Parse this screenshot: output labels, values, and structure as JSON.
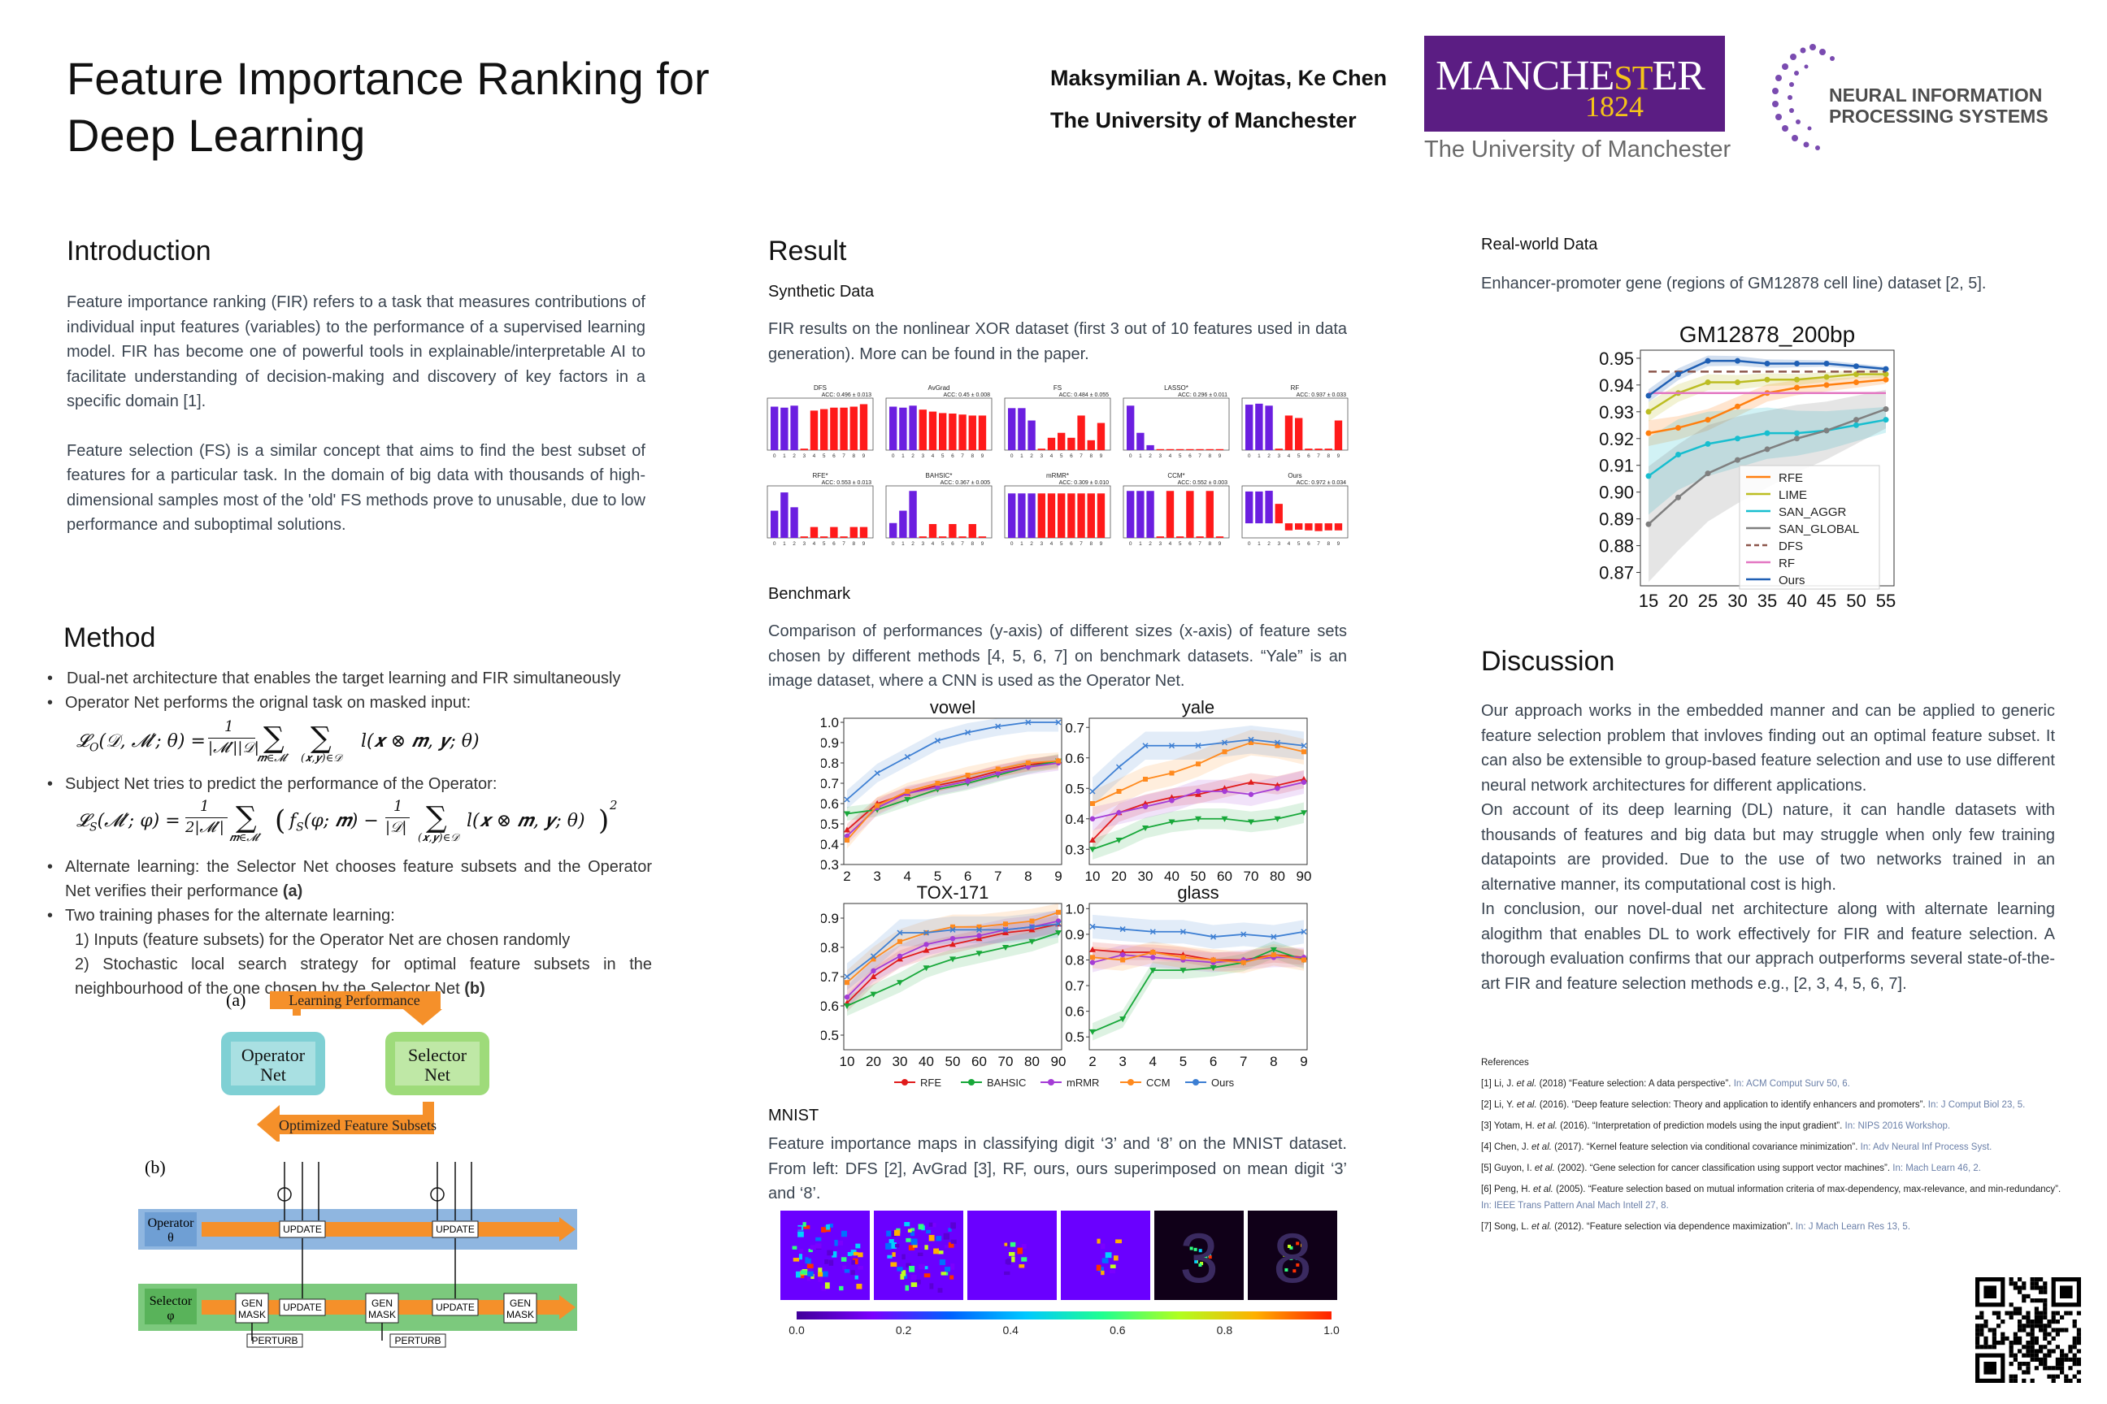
{
  "title_lines": [
    "Feature Importance Ranking for",
    "Deep Learning"
  ],
  "authors": "Maksymilian A. Wojtas, Ke Chen",
  "affiliation": "The University of Manchester",
  "manchester_logo": {
    "word_a": "MANCHE",
    "word_b": "ST",
    "word_c": "ER",
    "year": "1824",
    "sub": "The University of Manchester",
    "color": "#5b1d83"
  },
  "neurips_logo": {
    "line1": "NEURAL INFORMATION",
    "line2": "PROCESSING SYSTEMS",
    "color": "#6b3fa0"
  },
  "colors": {
    "accent": "#3a4450",
    "link": "#6a7fa8",
    "red": "#ff1a1a",
    "blue": "#6b1fe0"
  },
  "intro": {
    "heading": "Introduction",
    "p1": "Feature importance ranking (FIR) refers to a task that measures contributions of individual input features (variables) to the performance of a supervised learning model. FIR has become one of powerful tools in explainable/interpretable AI to facilitate understanding of decision-making and discovery of key factors in a specific domain [1].",
    "p2": "Feature selection (FS) is a similar concept that aims to find the best subset of features for a particular task. In the domain of big data with thousands of high-dimensional samples most of the 'old' FS methods prove to unusable, due to low performance and suboptimal solutions."
  },
  "method": {
    "heading": "Method",
    "b1": "Dual-net architecture that enables the target learning and FIR simultaneously",
    "b2": "Operator Net performs the orignal task on masked input:",
    "b3": "Subject Net tries to predict the performance of the Operator:",
    "b4a": "Alternate learning: the Selector Net chooses feature subsets and the Operator Net verifies their performance ",
    "b4b": "(a)",
    "b5": "Two training phases for the alternate learning:",
    "s1": "1) Inputs (feature subsets) for the Operator Net are chosen randomly",
    "s2a": "2) Stochastic local search strategy for optimal feature subsets in the neighbourhood of the one chosen by the Selector Net ",
    "s2b": "(b)"
  },
  "diagram_a": {
    "label": "(a)",
    "top": "Learning Performance",
    "bottom": "Optimized Feature Subsets",
    "op1": "Operator",
    "op2": "Net",
    "sel1": "Selector",
    "sel2": "Net"
  },
  "diagram_b": {
    "label": "(b)",
    "operator": "Operator",
    "theta": "θ",
    "selector": "Selector",
    "phi": "φ",
    "update": "UPDATE",
    "gen1": "GEN",
    "gen2": "MASK",
    "perturb": "PERTURB"
  },
  "result": {
    "heading": "Result",
    "synthetic": "Synthetic Data",
    "synthetic_text": "FIR results on the nonlinear XOR dataset (first 3 out of 10 features used in data generation). More can be found in the paper.",
    "benchmark": "Benchmark",
    "benchmark_text": "Comparison of performances (y-axis) of different sizes (x-axis) of feature sets chosen by different methods [4, 5, 6, 7] on benchmark datasets. “Yale” is an image dataset, where a CNN is used as the Operator Net.",
    "mnist": "MNIST",
    "mnist_text": "Feature importance maps in classifying digit ‘3’ and ‘8’ on the MNIST dataset. From left: DFS [2], AvGrad [3], RF, ours, ours superimposed on mean digit ‘3’ and ‘8’."
  },
  "realworld": {
    "heading": "Real-world Data",
    "text": "Enhancer-promoter gene (regions of GM12878 cell line) dataset [2, 5]."
  },
  "discussion": {
    "heading": "Discussion",
    "p1": "Our approach works in the embedded manner and can be applied to generic feature selection problem that invloves finding out an optimal feature subset. It can also be extensible to group-based feature selection and use to use different neural network architectures for different applications.",
    "p2": "On account of its deep learning (DL) nature,  it can handle datasets with thousands of features and big data but may struggle when only few training datapoints are provided. Due to the use of two networks trained in an alternative manner, its computational cost is high.",
    "p3": "In conclusion, our novel-dual net architecture along with alternate learning alogithm that enables DL to work effectively for FIR and feature selection. A thorough evaluation confirms that our apprach outperforms several state-of-the-art FIR and feature selection methods e.g., [2, 3, 4, 5, 6, 7]."
  },
  "references": {
    "heading": "References",
    "items": [
      {
        "a": "[1] Li, J. ",
        "e": "et al.",
        "b": " (2018)  “Feature selection: A data perspective”. ",
        "src": "In: ACM Comput Surv 50, 6."
      },
      {
        "a": "[2] Li, Y. ",
        "e": "et al.",
        "b": " (2016). “Deep feature selection: Theory and application to identify enhancers and promoters”. ",
        "src": "In: J Comput Biol 23, 5."
      },
      {
        "a": "[3] Yotam, H. ",
        "e": "et al.",
        "b": " (2016). “Interpretation of prediction models using the input gradient”. ",
        "src": "In: NIPS 2016 Workshop."
      },
      {
        "a": "[4] Chen, J. ",
        "e": "et al.",
        "b": " (2017). “Kernel feature selection via conditional covariance minimization”. ",
        "src": "In: Adv Neural Inf Process Syst."
      },
      {
        "a": "[5] Guyon, I. ",
        "e": "et al.",
        "b": " (2002). “Gene selection for cancer classification using support vector machines”. ",
        "src": "In: Mach Learn 46, 2."
      },
      {
        "a": "[6] Peng, H. ",
        "e": "et al.",
        "b": " (2005). “Feature selection based on mutual information criteria of max-dependency, max-relevance, and min-redundancy”. ",
        "src": "In: IEEE Trans Pattern Anal Mach Intell 27, 8."
      },
      {
        "a": "[7] Song, L. ",
        "e": "et al.",
        "b": " (2012). “Feature selection via dependence maximization”. ",
        "src": "In: J Mach Learn Res 13, 5."
      }
    ]
  },
  "chart_data": [
    {
      "type": "bar",
      "id": "xor-grid",
      "categories": [
        "0",
        "1",
        "2",
        "3",
        "4",
        "5",
        "6",
        "7",
        "8",
        "9"
      ],
      "panels": [
        {
          "title": "DFS",
          "acc": "ACC: 0.496 ± 0.013",
          "values": [
            0.88,
            0.86,
            0.9,
            0.03,
            0.8,
            0.83,
            0.86,
            0.86,
            0.88,
            0.93
          ]
        },
        {
          "title": "AvGrad",
          "acc": "ACC: 0.45 ± 0.008",
          "values": [
            0.88,
            0.86,
            0.9,
            0.82,
            0.78,
            0.75,
            0.74,
            0.72,
            0.7,
            0.7
          ]
        },
        {
          "title": "FS",
          "acc": "ACC: 0.484 ± 0.055",
          "values": [
            0.85,
            0.85,
            0.6,
            0.03,
            0.25,
            0.35,
            0.25,
            0.7,
            0.2,
            0.55
          ]
        },
        {
          "title": "LASSO*",
          "acc": "ACC: 0.296 ± 0.011",
          "values": [
            0.9,
            0.35,
            0.1,
            0.02,
            0.02,
            0.02,
            0.02,
            0.02,
            0.02,
            0.02
          ]
        },
        {
          "title": "RF",
          "acc": "ACC: 0.937 ± 0.033",
          "values": [
            0.92,
            0.94,
            0.9,
            0.03,
            0.7,
            0.65,
            0.03,
            0.03,
            0.03,
            0.6
          ]
        },
        {
          "title": "RFE*",
          "acc": "ACC: 0.553 ± 0.013",
          "values": [
            0.55,
            0.92,
            0.62,
            0.03,
            0.22,
            0.03,
            0.22,
            0.03,
            0.22,
            0.22
          ]
        },
        {
          "title": "BAHSIC*",
          "acc": "ACC: 0.367 ± 0.005",
          "values": [
            0.3,
            0.55,
            0.95,
            0.03,
            0.28,
            0.03,
            0.28,
            0.03,
            0.28,
            0.03
          ]
        },
        {
          "title": "mRMR*",
          "acc": "ACC: 0.309 ± 0.010",
          "values": [
            0.9,
            0.9,
            0.9,
            0.9,
            0.9,
            0.9,
            0.9,
            0.9,
            0.9,
            0.9
          ]
        },
        {
          "title": "CCM*",
          "acc": "ACC: 0.552 ± 0.003",
          "values": [
            0.95,
            0.95,
            0.95,
            0.03,
            0.95,
            0.03,
            0.95,
            0.03,
            0.95,
            0.03
          ]
        },
        {
          "title": "Ours",
          "acc": "ACC: 0.972 ± 0.034",
          "values": [
            0.9,
            0.9,
            0.92,
            0.55,
            -0.2,
            -0.18,
            -0.2,
            -0.22,
            -0.2,
            -0.2
          ]
        }
      ],
      "first_k_highlighted": 3,
      "colors": {
        "relevant": "#6b1fe0",
        "irrelevant": "#ff1a1a"
      }
    },
    {
      "type": "line",
      "id": "benchmark",
      "legend": [
        "RFE",
        "BAHSIC",
        "mRMR",
        "CCM",
        "Ours"
      ],
      "legend_colors": [
        "#e01b1b",
        "#18a83a",
        "#a43cd6",
        "#ff8a1e",
        "#3d7fd3"
      ],
      "legend_placement": "bottom",
      "subplots": [
        {
          "title": "vowel",
          "x": [
            2,
            3,
            4,
            5,
            6,
            7,
            8,
            9
          ],
          "yticks": [
            "0.3",
            "0.4",
            "0.5",
            "0.6",
            "0.7",
            "0.8",
            "0.9",
            "1.0"
          ],
          "ylim": [
            0.3,
            1.02
          ],
          "series": [
            {
              "values": [
                0.47,
                0.6,
                0.65,
                0.69,
                0.72,
                0.76,
                0.79,
                0.81
              ]
            },
            {
              "values": [
                0.55,
                0.57,
                0.62,
                0.67,
                0.7,
                0.74,
                0.78,
                0.81
              ]
            },
            {
              "values": [
                0.44,
                0.58,
                0.65,
                0.68,
                0.71,
                0.75,
                0.78,
                0.8
              ]
            },
            {
              "values": [
                0.42,
                0.59,
                0.66,
                0.7,
                0.74,
                0.77,
                0.8,
                0.81
              ]
            },
            {
              "values": [
                0.62,
                0.75,
                0.83,
                0.91,
                0.95,
                0.98,
                1.0,
                1.0
              ]
            }
          ]
        },
        {
          "title": "yale",
          "x": [
            10,
            20,
            30,
            40,
            50,
            60,
            70,
            80,
            90
          ],
          "yticks": [
            "0.3",
            "0.4",
            "0.5",
            "0.6",
            "0.7"
          ],
          "ylim": [
            0.25,
            0.73
          ],
          "series": [
            {
              "values": [
                0.33,
                0.42,
                0.45,
                0.47,
                0.48,
                0.5,
                0.52,
                0.51,
                0.53
              ]
            },
            {
              "values": [
                0.3,
                0.33,
                0.37,
                0.39,
                0.4,
                0.4,
                0.39,
                0.4,
                0.42
              ]
            },
            {
              "values": [
                0.4,
                0.42,
                0.44,
                0.46,
                0.49,
                0.49,
                0.48,
                0.5,
                0.52
              ]
            },
            {
              "values": [
                0.45,
                0.49,
                0.53,
                0.55,
                0.58,
                0.62,
                0.65,
                0.64,
                0.62
              ]
            },
            {
              "values": [
                0.49,
                0.57,
                0.64,
                0.64,
                0.64,
                0.65,
                0.66,
                0.65,
                0.64
              ]
            }
          ]
        },
        {
          "title": "TOX-171",
          "x": [
            10,
            20,
            30,
            40,
            50,
            60,
            70,
            80,
            90
          ],
          "yticks": [
            "0.5",
            "0.6",
            "0.7",
            "0.8",
            "0.9"
          ],
          "ylim": [
            0.45,
            0.95
          ],
          "series": [
            {
              "values": [
                0.61,
                0.7,
                0.76,
                0.79,
                0.81,
                0.83,
                0.85,
                0.86,
                0.88
              ]
            },
            {
              "values": [
                0.6,
                0.64,
                0.68,
                0.73,
                0.76,
                0.78,
                0.8,
                0.82,
                0.85
              ]
            },
            {
              "values": [
                0.63,
                0.72,
                0.77,
                0.81,
                0.83,
                0.84,
                0.86,
                0.87,
                0.89
              ]
            },
            {
              "values": [
                0.68,
                0.76,
                0.82,
                0.85,
                0.87,
                0.87,
                0.88,
                0.89,
                0.92
              ]
            },
            {
              "values": [
                0.7,
                0.77,
                0.85,
                0.85,
                0.86,
                0.86,
                0.86,
                0.87,
                0.88
              ]
            }
          ]
        },
        {
          "title": "glass",
          "x": [
            2,
            3,
            4,
            5,
            6,
            7,
            8,
            9
          ],
          "yticks": [
            "0.5",
            "0.6",
            "0.7",
            "0.8",
            "0.9",
            "1.0"
          ],
          "ylim": [
            0.45,
            1.02
          ],
          "series": [
            {
              "values": [
                0.84,
                0.83,
                0.83,
                0.82,
                0.8,
                0.8,
                0.82,
                0.81
              ]
            },
            {
              "values": [
                0.52,
                0.57,
                0.76,
                0.76,
                0.77,
                0.79,
                0.84,
                0.8
              ]
            },
            {
              "values": [
                0.79,
                0.82,
                0.81,
                0.8,
                0.79,
                0.8,
                0.81,
                0.81
              ]
            },
            {
              "values": [
                0.81,
                0.8,
                0.83,
                0.81,
                0.8,
                0.79,
                0.82,
                0.8
              ]
            },
            {
              "values": [
                0.93,
                0.92,
                0.91,
                0.91,
                0.89,
                0.9,
                0.89,
                0.91
              ]
            }
          ]
        }
      ]
    },
    {
      "type": "line",
      "id": "gm12878",
      "title": "GM12878_200bp",
      "x": [
        15,
        20,
        25,
        30,
        35,
        40,
        45,
        50,
        55
      ],
      "yticks": [
        "0.87",
        "0.88",
        "0.89",
        "0.90",
        "0.91",
        "0.92",
        "0.93",
        "0.94",
        "0.95"
      ],
      "ylim": [
        0.865,
        0.953
      ],
      "legend_placement": "lower-right",
      "series": [
        {
          "name": "RFE",
          "color": "#ff7f0e",
          "values": [
            0.922,
            0.924,
            0.927,
            0.932,
            0.937,
            0.939,
            0.94,
            0.941,
            0.942
          ]
        },
        {
          "name": "LIME",
          "color": "#bcbd22",
          "values": [
            0.93,
            0.937,
            0.941,
            0.941,
            0.942,
            0.942,
            0.943,
            0.944,
            0.944
          ]
        },
        {
          "name": "SAN_AGGR",
          "color": "#17becf",
          "values": [
            0.906,
            0.914,
            0.918,
            0.92,
            0.922,
            0.922,
            0.923,
            0.925,
            0.927
          ]
        },
        {
          "name": "SAN_GLOBAL",
          "color": "#7f7f7f",
          "values": [
            0.888,
            0.898,
            0.907,
            0.912,
            0.916,
            0.92,
            0.923,
            0.927,
            0.931
          ]
        },
        {
          "name": "DFS",
          "color": "#8c564b",
          "dashed": true,
          "values": [
            0.945,
            0.945,
            0.945,
            0.945,
            0.945,
            0.945,
            0.945,
            0.945,
            0.945
          ]
        },
        {
          "name": "RF",
          "color": "#e377c2",
          "values": [
            0.937,
            0.937,
            0.937,
            0.937,
            0.937,
            0.937,
            0.937,
            0.937,
            0.937
          ]
        },
        {
          "name": "Ours",
          "color": "#1f5fb4",
          "values": [
            0.936,
            0.944,
            0.949,
            0.949,
            0.948,
            0.948,
            0.948,
            0.947,
            0.946
          ]
        }
      ]
    },
    {
      "type": "heatmap",
      "id": "mnist-colorbar",
      "ticks": [
        "0.0",
        "0.2",
        "0.4",
        "0.6",
        "0.8",
        "1.0"
      ]
    }
  ]
}
